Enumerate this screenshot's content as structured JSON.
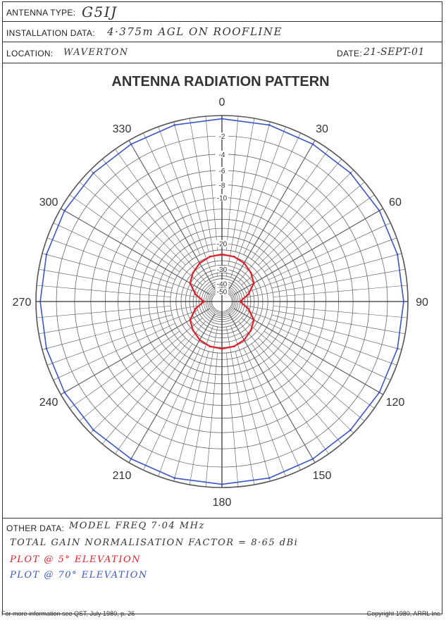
{
  "header": {
    "antenna_type_label": "ANTENNA TYPE:",
    "antenna_type_value": "G5IJ",
    "installation_label": "INSTALLATION DATA:",
    "installation_value": "4·375m AGL ON ROOFLINE",
    "location_label": "LOCATION:",
    "location_value": "WAVERTON",
    "date_label": "DATE:",
    "date_value": "21-SEPT-01"
  },
  "chart_data": {
    "type": "polar",
    "title": "ANTENNA RADIATION PATTERN",
    "angle_labels": [
      "0",
      "30",
      "60",
      "90",
      "120",
      "150",
      "180",
      "210",
      "240",
      "270",
      "300",
      "330"
    ],
    "radial_labels": [
      "-2",
      "-4",
      "-6",
      "-8",
      "-10",
      "-20",
      "-30",
      "-40",
      "-50"
    ],
    "series": [
      {
        "name": "PLOT @ 5° ELEVATION",
        "color": "#e0202a",
        "angles": [
          0,
          15,
          30,
          45,
          60,
          75,
          90,
          105,
          120,
          135,
          150,
          165,
          180,
          195,
          210,
          225,
          240,
          255,
          270,
          285,
          300,
          315,
          330,
          345
        ],
        "values": [
          -23.5,
          -23.8,
          -24.6,
          -26.0,
          -27.8,
          -33.0,
          -40.0,
          -33.0,
          -27.8,
          -26.0,
          -24.6,
          -23.8,
          -23.5,
          -23.8,
          -24.6,
          -26.0,
          -27.8,
          -33.0,
          -40.0,
          -33.0,
          -27.8,
          -26.0,
          -24.6,
          -23.8
        ]
      },
      {
        "name": "PLOT @ 70° ELEVATION",
        "color": "#3a56c8",
        "angles": [
          0,
          15,
          30,
          45,
          60,
          75,
          90,
          105,
          120,
          135,
          150,
          165,
          180,
          195,
          210,
          225,
          240,
          255,
          270,
          285,
          300,
          315,
          330,
          345
        ],
        "values": [
          -0.3,
          -0.3,
          -0.4,
          -0.4,
          -0.4,
          -0.4,
          -0.4,
          -0.4,
          -0.4,
          -0.4,
          -0.4,
          -0.3,
          -0.3,
          -0.3,
          -0.4,
          -0.4,
          -0.4,
          -0.4,
          -0.4,
          -0.4,
          -0.4,
          -0.4,
          -0.4,
          -0.3
        ]
      }
    ]
  },
  "notes": {
    "other_data_label": "OTHER DATA:",
    "other_data_value": "MODEL FREQ   7·04 MHz",
    "gain_line": "TOTAL GAIN NORMALISATION FACTOR = 8·65 dBi",
    "red_line": "PLOT @ 5° ELEVATION",
    "blue_line": "PLOT @ 70° ELEVATION"
  },
  "footer": {
    "left": "For more information see QST, July 1980, p. 26",
    "right": "Copyright 1980, ARRL Inc."
  }
}
